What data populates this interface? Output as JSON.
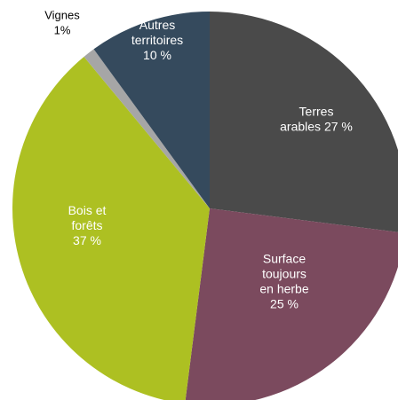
{
  "chart_data": {
    "type": "pie",
    "title": "",
    "slices": [
      {
        "label_lines": [
          "Terres",
          "arables 27 %"
        ],
        "value": 27,
        "color": "#4a4a4a"
      },
      {
        "label_lines": [
          "Surface",
          "toujours",
          "en herbe",
          "25 %"
        ],
        "value": 25,
        "color": "#7b4a5e"
      },
      {
        "label_lines": [
          "Bois et",
          "forêts",
          "37 %"
        ],
        "value": 37,
        "color": "#adc022"
      },
      {
        "label_lines": [
          "Vignes",
          "1%"
        ],
        "value": 1,
        "color": "#a6a6a6"
      },
      {
        "label_lines": [
          "Autres",
          "territoires",
          "10 %"
        ],
        "value": 10,
        "color": "#354a5d"
      }
    ]
  }
}
